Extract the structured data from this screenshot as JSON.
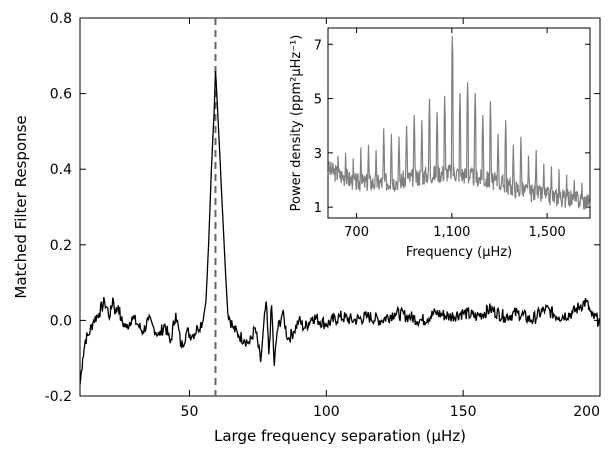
{
  "chart_data": [
    {
      "type": "line",
      "xlabel": "Large frequency separation (μHz)",
      "ylabel": "Matched Filter Response",
      "xlim": [
        10,
        200
      ],
      "ylim": [
        -0.2,
        0.8
      ],
      "xticks": [
        50,
        100,
        150,
        200
      ],
      "yticks": [
        -0.2,
        0.0,
        0.2,
        0.4,
        0.6,
        0.8
      ],
      "ytick_labels": [
        "-0.2",
        "0.0",
        "0.2",
        "0.4",
        "0.6",
        "0.8"
      ],
      "grid": false,
      "line_color": "#000000",
      "reference_line": {
        "x": 59.5,
        "style": "dashed",
        "color": "#666666"
      },
      "x": [
        10,
        11,
        12,
        13,
        15,
        17,
        19,
        21,
        22,
        23,
        24,
        25,
        27,
        29,
        31,
        33,
        35,
        37,
        39,
        41,
        43,
        45,
        47,
        49,
        51,
        53,
        55,
        56,
        57,
        58,
        59,
        59.5,
        60,
        61,
        62,
        63,
        64,
        66,
        68,
        70,
        72,
        74,
        76,
        78,
        79,
        80,
        81,
        82,
        84,
        86,
        88,
        90,
        92,
        95,
        100,
        105,
        110,
        115,
        120,
        125,
        130,
        135,
        140,
        145,
        150,
        155,
        160,
        165,
        170,
        175,
        180,
        185,
        190,
        193,
        195,
        197,
        200
      ],
      "values": [
        -0.17,
        -0.1,
        -0.05,
        -0.04,
        0.0,
        0.02,
        0.05,
        0.01,
        0.06,
        0.02,
        0.04,
        0.0,
        -0.02,
        0.01,
        -0.01,
        -0.03,
        0.0,
        -0.02,
        -0.04,
        -0.01,
        -0.06,
        0.02,
        -0.07,
        -0.03,
        -0.04,
        -0.02,
        0.0,
        0.05,
        0.2,
        0.4,
        0.55,
        0.66,
        0.6,
        0.45,
        0.3,
        0.15,
        0.02,
        -0.02,
        -0.04,
        -0.05,
        -0.06,
        -0.02,
        -0.11,
        0.05,
        -0.09,
        0.04,
        -0.12,
        -0.03,
        0.02,
        -0.05,
        -0.03,
        0.0,
        -0.02,
        0.01,
        -0.01,
        0.01,
        0.0,
        0.01,
        0.0,
        0.02,
        0.01,
        0.0,
        0.02,
        0.01,
        0.02,
        0.01,
        0.03,
        0.01,
        0.02,
        0.0,
        0.03,
        0.01,
        0.02,
        0.04,
        0.05,
        0.01,
        0.0
      ]
    },
    {
      "type": "line",
      "xlabel": "Frequency (μHz)",
      "ylabel": "Power density (ppm²μHz⁻¹)",
      "xlim": [
        580,
        1680
      ],
      "ylim": [
        0.6,
        7.6
      ],
      "xticks": [
        700,
        1100,
        1500
      ],
      "xtick_labels": [
        "700",
        "1,100",
        "1,500"
      ],
      "yticks": [
        1,
        3,
        5,
        7
      ],
      "grid": false,
      "line_color": "#808080",
      "background_curve": {
        "x": [
          580,
          700,
          800,
          900,
          1000,
          1100,
          1200,
          1300,
          1400,
          1500,
          1600,
          1680
        ],
        "values": [
          2.4,
          1.9,
          1.9,
          2.0,
          2.2,
          2.3,
          2.1,
          1.9,
          1.6,
          1.4,
          1.3,
          1.2
        ]
      },
      "peaks": {
        "x": [
          622,
          654,
          686,
          718,
          750,
          782,
          814,
          846,
          878,
          910,
          942,
          974,
          1006,
          1038,
          1070,
          1102,
          1134,
          1166,
          1198,
          1230,
          1262,
          1294,
          1326,
          1358,
          1390,
          1422,
          1454,
          1486,
          1518,
          1550,
          1582,
          1614,
          1646
        ],
        "values": [
          2.9,
          3.0,
          2.8,
          3.2,
          3.3,
          3.1,
          3.9,
          3.7,
          3.6,
          4.0,
          4.4,
          4.2,
          5.0,
          4.5,
          5.1,
          7.3,
          5.2,
          5.6,
          5.2,
          4.4,
          4.9,
          3.7,
          4.2,
          3.3,
          3.6,
          2.9,
          3.1,
          2.6,
          2.5,
          2.4,
          2.2,
          2.0,
          1.9
        ]
      }
    }
  ]
}
